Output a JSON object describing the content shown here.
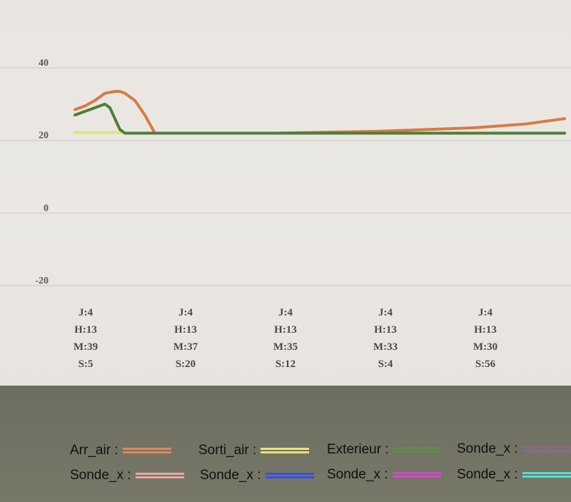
{
  "chart_data": {
    "type": "line",
    "ylim": [
      -20,
      45
    ],
    "yticks": [
      "40",
      "20",
      "0",
      "-20"
    ],
    "ytick_values": [
      40,
      20,
      0,
      -20
    ],
    "x_index_range": [
      0,
      100
    ],
    "xticks": [
      {
        "idx": 0,
        "lines": [
          "J:4",
          "H:13",
          "M:39",
          "S:5"
        ]
      },
      {
        "idx": 20,
        "lines": [
          "J:4",
          "H:13",
          "M:37",
          "S:20"
        ]
      },
      {
        "idx": 40,
        "lines": [
          "J:4",
          "H:13",
          "M:35",
          "S:12"
        ]
      },
      {
        "idx": 60,
        "lines": [
          "J:4",
          "H:13",
          "M:33",
          "S:4"
        ]
      },
      {
        "idx": 80,
        "lines": [
          "J:4",
          "H:13",
          "M:30",
          "S:56"
        ]
      }
    ],
    "series": [
      {
        "name": "Arr_air",
        "color": "#d97a45",
        "x": [
          0,
          2,
          4,
          6,
          8,
          9,
          10,
          12,
          14,
          16,
          20,
          40,
          60,
          80,
          90,
          98
        ],
        "y": [
          28.5,
          29.5,
          31,
          33,
          33.5,
          33.5,
          33,
          31,
          27,
          22,
          22,
          22,
          22.5,
          23.5,
          24.5,
          26
        ]
      },
      {
        "name": "Sorti_air",
        "color": "#e2e06a",
        "x": [
          0,
          10
        ],
        "y": [
          22.2,
          22.2
        ]
      },
      {
        "name": "Exterieur",
        "color": "#4f7d3b",
        "x": [
          0,
          2,
          4,
          6,
          7,
          8,
          9,
          10,
          12,
          20,
          40,
          60,
          80,
          98
        ],
        "y": [
          27,
          28,
          29,
          30,
          29,
          26,
          23,
          22,
          22,
          22,
          22,
          22,
          22,
          22
        ]
      }
    ]
  },
  "legend": [
    {
      "label": "Arr_air :",
      "color": "#dc8a5a"
    },
    {
      "label": "Sorti_air :",
      "color": "#e8e27a"
    },
    {
      "label": "Exterieur :",
      "color": "#5e8a4e"
    },
    {
      "label": "Sonde_x :",
      "color": "#8a6a88"
    },
    {
      "label": "Sonde_x :",
      "color": "#e9a9a8"
    },
    {
      "label": "Sonde_x :",
      "color": "#3a4fd8"
    },
    {
      "label": "Sonde_x :",
      "color": "#d447d0"
    },
    {
      "label": "Sonde_x :",
      "color": "#4fe0d4"
    }
  ]
}
